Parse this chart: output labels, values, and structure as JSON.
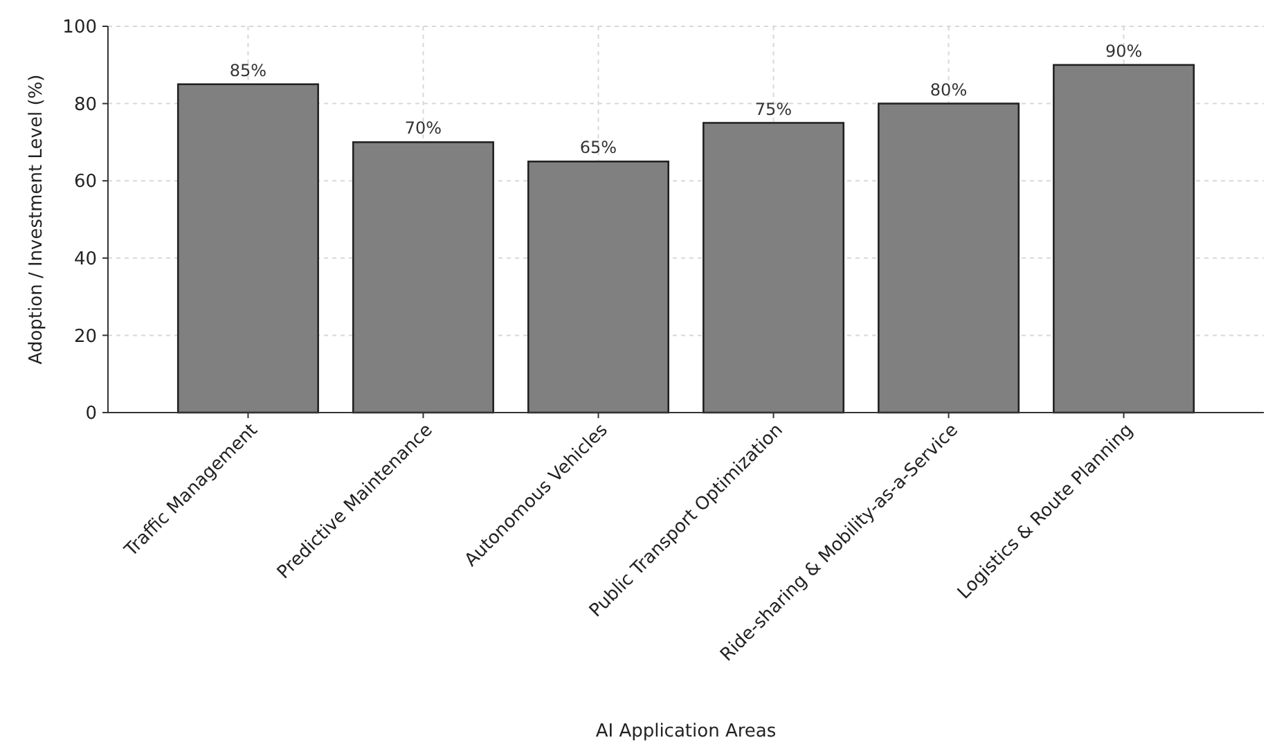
{
  "chart_data": {
    "type": "bar",
    "xlabel": "AI Application Areas",
    "ylabel": "Adoption / Investment Level (%)",
    "categories": [
      "Traffic Management",
      "Predictive Maintenance",
      "Autonomous Vehicles",
      "Public Transport Optimization",
      "Ride-sharing & Mobility-as-a-Service",
      "Logistics & Route Planning"
    ],
    "values": [
      85,
      70,
      65,
      75,
      80,
      90
    ],
    "value_labels": [
      "85%",
      "70%",
      "65%",
      "75%",
      "80%",
      "90%"
    ],
    "color": "#808080",
    "ylim": [
      0,
      100
    ],
    "yticks": [
      0,
      20,
      40,
      60,
      80,
      100
    ],
    "grid": true
  }
}
